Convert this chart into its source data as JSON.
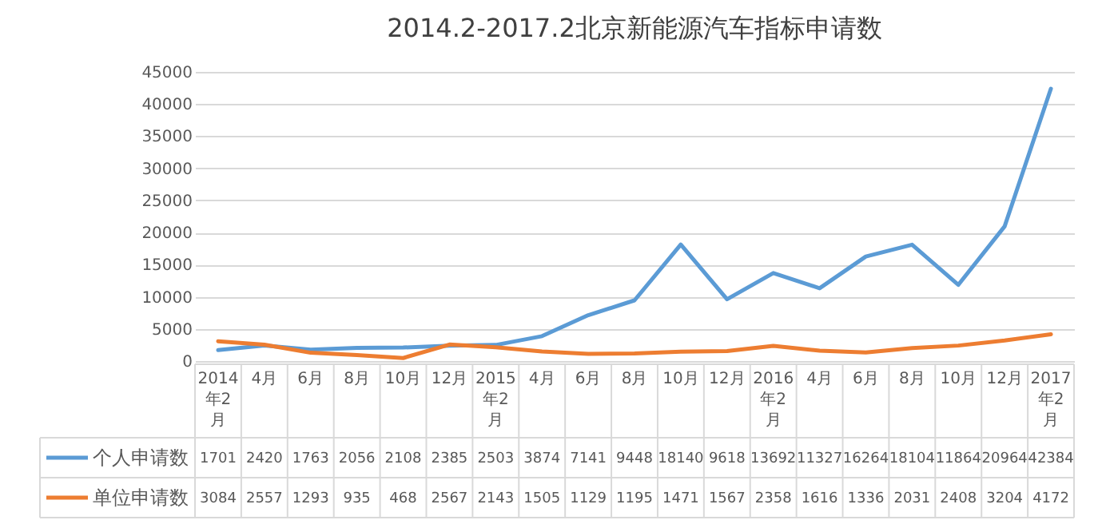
{
  "chart_data": {
    "type": "line",
    "title": "2014.2-2017.2北京新能源汽车指标申请数",
    "categories": [
      "2014年2月",
      "4月",
      "6月",
      "8月",
      "10月",
      "12月",
      "2015年2月",
      "4月",
      "6月",
      "8月",
      "10月",
      "12月",
      "2016年2月",
      "4月",
      "6月",
      "8月",
      "10月",
      "12月",
      "2017年2月"
    ],
    "series": [
      {
        "name": "个人申请数",
        "color": "#5b9bd5",
        "values": [
          1701,
          2420,
          1763,
          2056,
          2108,
          2385,
          2503,
          3874,
          7141,
          9448,
          18140,
          9618,
          13692,
          11327,
          16264,
          18104,
          11864,
          20964,
          42384
        ]
      },
      {
        "name": "单位申请数",
        "color": "#ed7d31",
        "values": [
          3084,
          2557,
          1293,
          935,
          468,
          2567,
          2143,
          1505,
          1129,
          1195,
          1471,
          1567,
          2358,
          1616,
          1336,
          2031,
          2408,
          3204,
          4172
        ]
      }
    ],
    "ylim": [
      0,
      45000
    ],
    "yticks": [
      0,
      5000,
      10000,
      15000,
      20000,
      25000,
      30000,
      35000,
      40000,
      45000
    ],
    "grid": "y",
    "data_labels": true,
    "legend": "bottom",
    "marker": "none",
    "line_style": "solid"
  }
}
